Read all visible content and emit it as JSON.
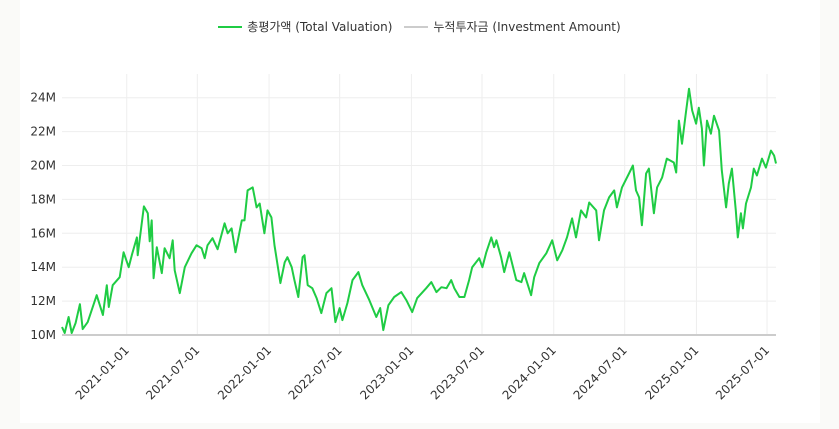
{
  "chart_data": {
    "type": "line",
    "title": "",
    "xlabel": "",
    "ylabel": "",
    "legend_position": "top-center",
    "grid": true,
    "xlim": [
      "2020-07-19",
      "2025-07-24"
    ],
    "ylim": [
      10,
      25.4
    ],
    "y_ticks": [
      10,
      12,
      14,
      16,
      18,
      20,
      22,
      24
    ],
    "y_tick_labels": [
      "10M",
      "12M",
      "14M",
      "16M",
      "18M",
      "20M",
      "22M",
      "24M"
    ],
    "x_ticks": [
      "2021-01-01",
      "2021-07-01",
      "2022-01-01",
      "2022-07-01",
      "2023-01-01",
      "2023-07-01",
      "2024-01-01",
      "2024-07-01",
      "2025-01-01",
      "2025-07-01"
    ],
    "series": [
      {
        "name": "총평가액 (Total Valuation)",
        "color": "#1fcc44",
        "points": [
          [
            "2020-07-19",
            10.47
          ],
          [
            "2020-07-26",
            10.12
          ],
          [
            "2020-08-05",
            11.06
          ],
          [
            "2020-08-13",
            10.12
          ],
          [
            "2020-08-23",
            10.71
          ],
          [
            "2020-09-03",
            11.82
          ],
          [
            "2020-09-10",
            10.35
          ],
          [
            "2020-09-23",
            10.76
          ],
          [
            "2020-10-16",
            12.35
          ],
          [
            "2020-11-01",
            11.18
          ],
          [
            "2020-11-11",
            12.94
          ],
          [
            "2020-11-16",
            11.65
          ],
          [
            "2020-11-26",
            12.94
          ],
          [
            "2020-12-14",
            13.41
          ],
          [
            "2020-12-24",
            14.88
          ],
          [
            "2021-01-06",
            14.0
          ],
          [
            "2021-01-14",
            14.71
          ],
          [
            "2021-01-27",
            15.76
          ],
          [
            "2021-01-29",
            14.71
          ],
          [
            "2021-02-14",
            17.59
          ],
          [
            "2021-02-24",
            17.18
          ],
          [
            "2021-03-01",
            15.53
          ],
          [
            "2021-03-06",
            16.76
          ],
          [
            "2021-03-11",
            13.35
          ],
          [
            "2021-03-19",
            15.18
          ],
          [
            "2021-04-01",
            13.65
          ],
          [
            "2021-04-08",
            15.12
          ],
          [
            "2021-04-21",
            14.53
          ],
          [
            "2021-04-29",
            15.59
          ],
          [
            "2021-05-04",
            13.82
          ],
          [
            "2021-05-17",
            12.47
          ],
          [
            "2021-05-30",
            14.0
          ],
          [
            "2021-06-16",
            14.82
          ],
          [
            "2021-06-29",
            15.29
          ],
          [
            "2021-07-12",
            15.12
          ],
          [
            "2021-07-20",
            14.53
          ],
          [
            "2021-07-27",
            15.29
          ],
          [
            "2021-08-09",
            15.71
          ],
          [
            "2021-08-22",
            15.06
          ],
          [
            "2021-09-09",
            16.59
          ],
          [
            "2021-09-17",
            16.0
          ],
          [
            "2021-09-27",
            16.29
          ],
          [
            "2021-10-07",
            14.88
          ],
          [
            "2021-10-23",
            16.76
          ],
          [
            "2021-10-30",
            16.76
          ],
          [
            "2021-11-07",
            18.53
          ],
          [
            "2021-11-20",
            18.71
          ],
          [
            "2021-11-30",
            17.53
          ],
          [
            "2021-12-08",
            17.76
          ],
          [
            "2021-12-20",
            16.0
          ],
          [
            "2021-12-28",
            17.35
          ],
          [
            "2022-01-07",
            16.94
          ],
          [
            "2022-01-15",
            15.29
          ],
          [
            "2022-01-30",
            13.06
          ],
          [
            "2022-02-10",
            14.29
          ],
          [
            "2022-02-17",
            14.59
          ],
          [
            "2022-02-28",
            14.0
          ],
          [
            "2022-03-07",
            13.24
          ],
          [
            "2022-03-17",
            12.24
          ],
          [
            "2022-03-28",
            14.59
          ],
          [
            "2022-04-02",
            14.71
          ],
          [
            "2022-04-10",
            12.94
          ],
          [
            "2022-04-22",
            12.76
          ],
          [
            "2022-05-03",
            12.18
          ],
          [
            "2022-05-15",
            11.29
          ],
          [
            "2022-05-28",
            12.47
          ],
          [
            "2022-06-10",
            12.76
          ],
          [
            "2022-06-20",
            10.76
          ],
          [
            "2022-07-01",
            11.59
          ],
          [
            "2022-07-08",
            10.88
          ],
          [
            "2022-07-21",
            11.88
          ],
          [
            "2022-08-03",
            13.24
          ],
          [
            "2022-08-18",
            13.71
          ],
          [
            "2022-08-28",
            12.94
          ],
          [
            "2022-09-15",
            12.06
          ],
          [
            "2022-10-03",
            11.06
          ],
          [
            "2022-10-13",
            11.59
          ],
          [
            "2022-10-21",
            10.29
          ],
          [
            "2022-11-03",
            11.76
          ],
          [
            "2022-11-18",
            12.24
          ],
          [
            "2022-12-06",
            12.53
          ],
          [
            "2022-12-19",
            12.06
          ],
          [
            "2023-01-03",
            11.35
          ],
          [
            "2023-01-16",
            12.18
          ],
          [
            "2023-02-08",
            12.76
          ],
          [
            "2023-02-21",
            13.12
          ],
          [
            "2023-03-06",
            12.53
          ],
          [
            "2023-03-19",
            12.82
          ],
          [
            "2023-04-01",
            12.76
          ],
          [
            "2023-04-13",
            13.24
          ],
          [
            "2023-04-21",
            12.76
          ],
          [
            "2023-05-04",
            12.24
          ],
          [
            "2023-05-17",
            12.24
          ],
          [
            "2023-05-29",
            13.24
          ],
          [
            "2023-06-06",
            14.0
          ],
          [
            "2023-06-24",
            14.53
          ],
          [
            "2023-07-02",
            14.0
          ],
          [
            "2023-07-12",
            14.88
          ],
          [
            "2023-07-25",
            15.76
          ],
          [
            "2023-08-01",
            15.18
          ],
          [
            "2023-08-07",
            15.59
          ],
          [
            "2023-08-19",
            14.59
          ],
          [
            "2023-08-27",
            13.71
          ],
          [
            "2023-09-09",
            14.88
          ],
          [
            "2023-09-27",
            13.24
          ],
          [
            "2023-10-10",
            13.12
          ],
          [
            "2023-10-17",
            13.65
          ],
          [
            "2023-11-04",
            12.35
          ],
          [
            "2023-11-12",
            13.41
          ],
          [
            "2023-11-25",
            14.24
          ],
          [
            "2023-12-13",
            14.82
          ],
          [
            "2023-12-28",
            15.59
          ],
          [
            "2024-01-10",
            14.41
          ],
          [
            "2024-01-23",
            15.0
          ],
          [
            "2024-02-04",
            15.76
          ],
          [
            "2024-02-17",
            16.88
          ],
          [
            "2024-02-27",
            15.76
          ],
          [
            "2024-03-11",
            17.35
          ],
          [
            "2024-03-24",
            16.94
          ],
          [
            "2024-04-01",
            17.82
          ],
          [
            "2024-04-19",
            17.35
          ],
          [
            "2024-04-26",
            15.59
          ],
          [
            "2024-05-09",
            17.35
          ],
          [
            "2024-05-22",
            18.12
          ],
          [
            "2024-06-04",
            18.53
          ],
          [
            "2024-06-11",
            17.53
          ],
          [
            "2024-06-24",
            18.71
          ],
          [
            "2024-07-12",
            19.53
          ],
          [
            "2024-07-22",
            20.0
          ],
          [
            "2024-07-30",
            18.53
          ],
          [
            "2024-08-07",
            18.12
          ],
          [
            "2024-08-14",
            16.47
          ],
          [
            "2024-08-25",
            19.53
          ],
          [
            "2024-09-01",
            19.82
          ],
          [
            "2024-09-14",
            17.18
          ],
          [
            "2024-09-22",
            18.71
          ],
          [
            "2024-10-05",
            19.29
          ],
          [
            "2024-10-17",
            20.41
          ],
          [
            "2024-11-04",
            20.18
          ],
          [
            "2024-11-10",
            19.59
          ],
          [
            "2024-11-17",
            22.65
          ],
          [
            "2024-11-25",
            21.29
          ],
          [
            "2024-12-05",
            23.12
          ],
          [
            "2024-12-13",
            24.53
          ],
          [
            "2024-12-21",
            23.24
          ],
          [
            "2024-12-31",
            22.47
          ],
          [
            "2025-01-07",
            23.41
          ],
          [
            "2025-01-15",
            22.18
          ],
          [
            "2025-01-20",
            20.0
          ],
          [
            "2025-01-28",
            22.65
          ],
          [
            "2025-02-07",
            21.88
          ],
          [
            "2025-02-15",
            22.94
          ],
          [
            "2025-02-28",
            22.06
          ],
          [
            "2025-03-07",
            19.71
          ],
          [
            "2025-03-18",
            17.53
          ],
          [
            "2025-03-25",
            18.94
          ],
          [
            "2025-04-02",
            19.82
          ],
          [
            "2025-04-12",
            17.35
          ],
          [
            "2025-04-17",
            15.76
          ],
          [
            "2025-04-25",
            17.18
          ],
          [
            "2025-04-30",
            16.29
          ],
          [
            "2025-05-08",
            17.76
          ],
          [
            "2025-05-21",
            18.71
          ],
          [
            "2025-05-28",
            19.82
          ],
          [
            "2025-06-05",
            19.41
          ],
          [
            "2025-06-18",
            20.41
          ],
          [
            "2025-06-28",
            19.88
          ],
          [
            "2025-07-11",
            20.88
          ],
          [
            "2025-07-19",
            20.59
          ],
          [
            "2025-07-24",
            20.12
          ]
        ]
      },
      {
        "name": "누적투자금 (Investment Amount)",
        "color": "#cccccc",
        "points": [
          [
            "2020-07-19",
            10
          ],
          [
            "2025-07-24",
            10
          ]
        ]
      }
    ]
  }
}
